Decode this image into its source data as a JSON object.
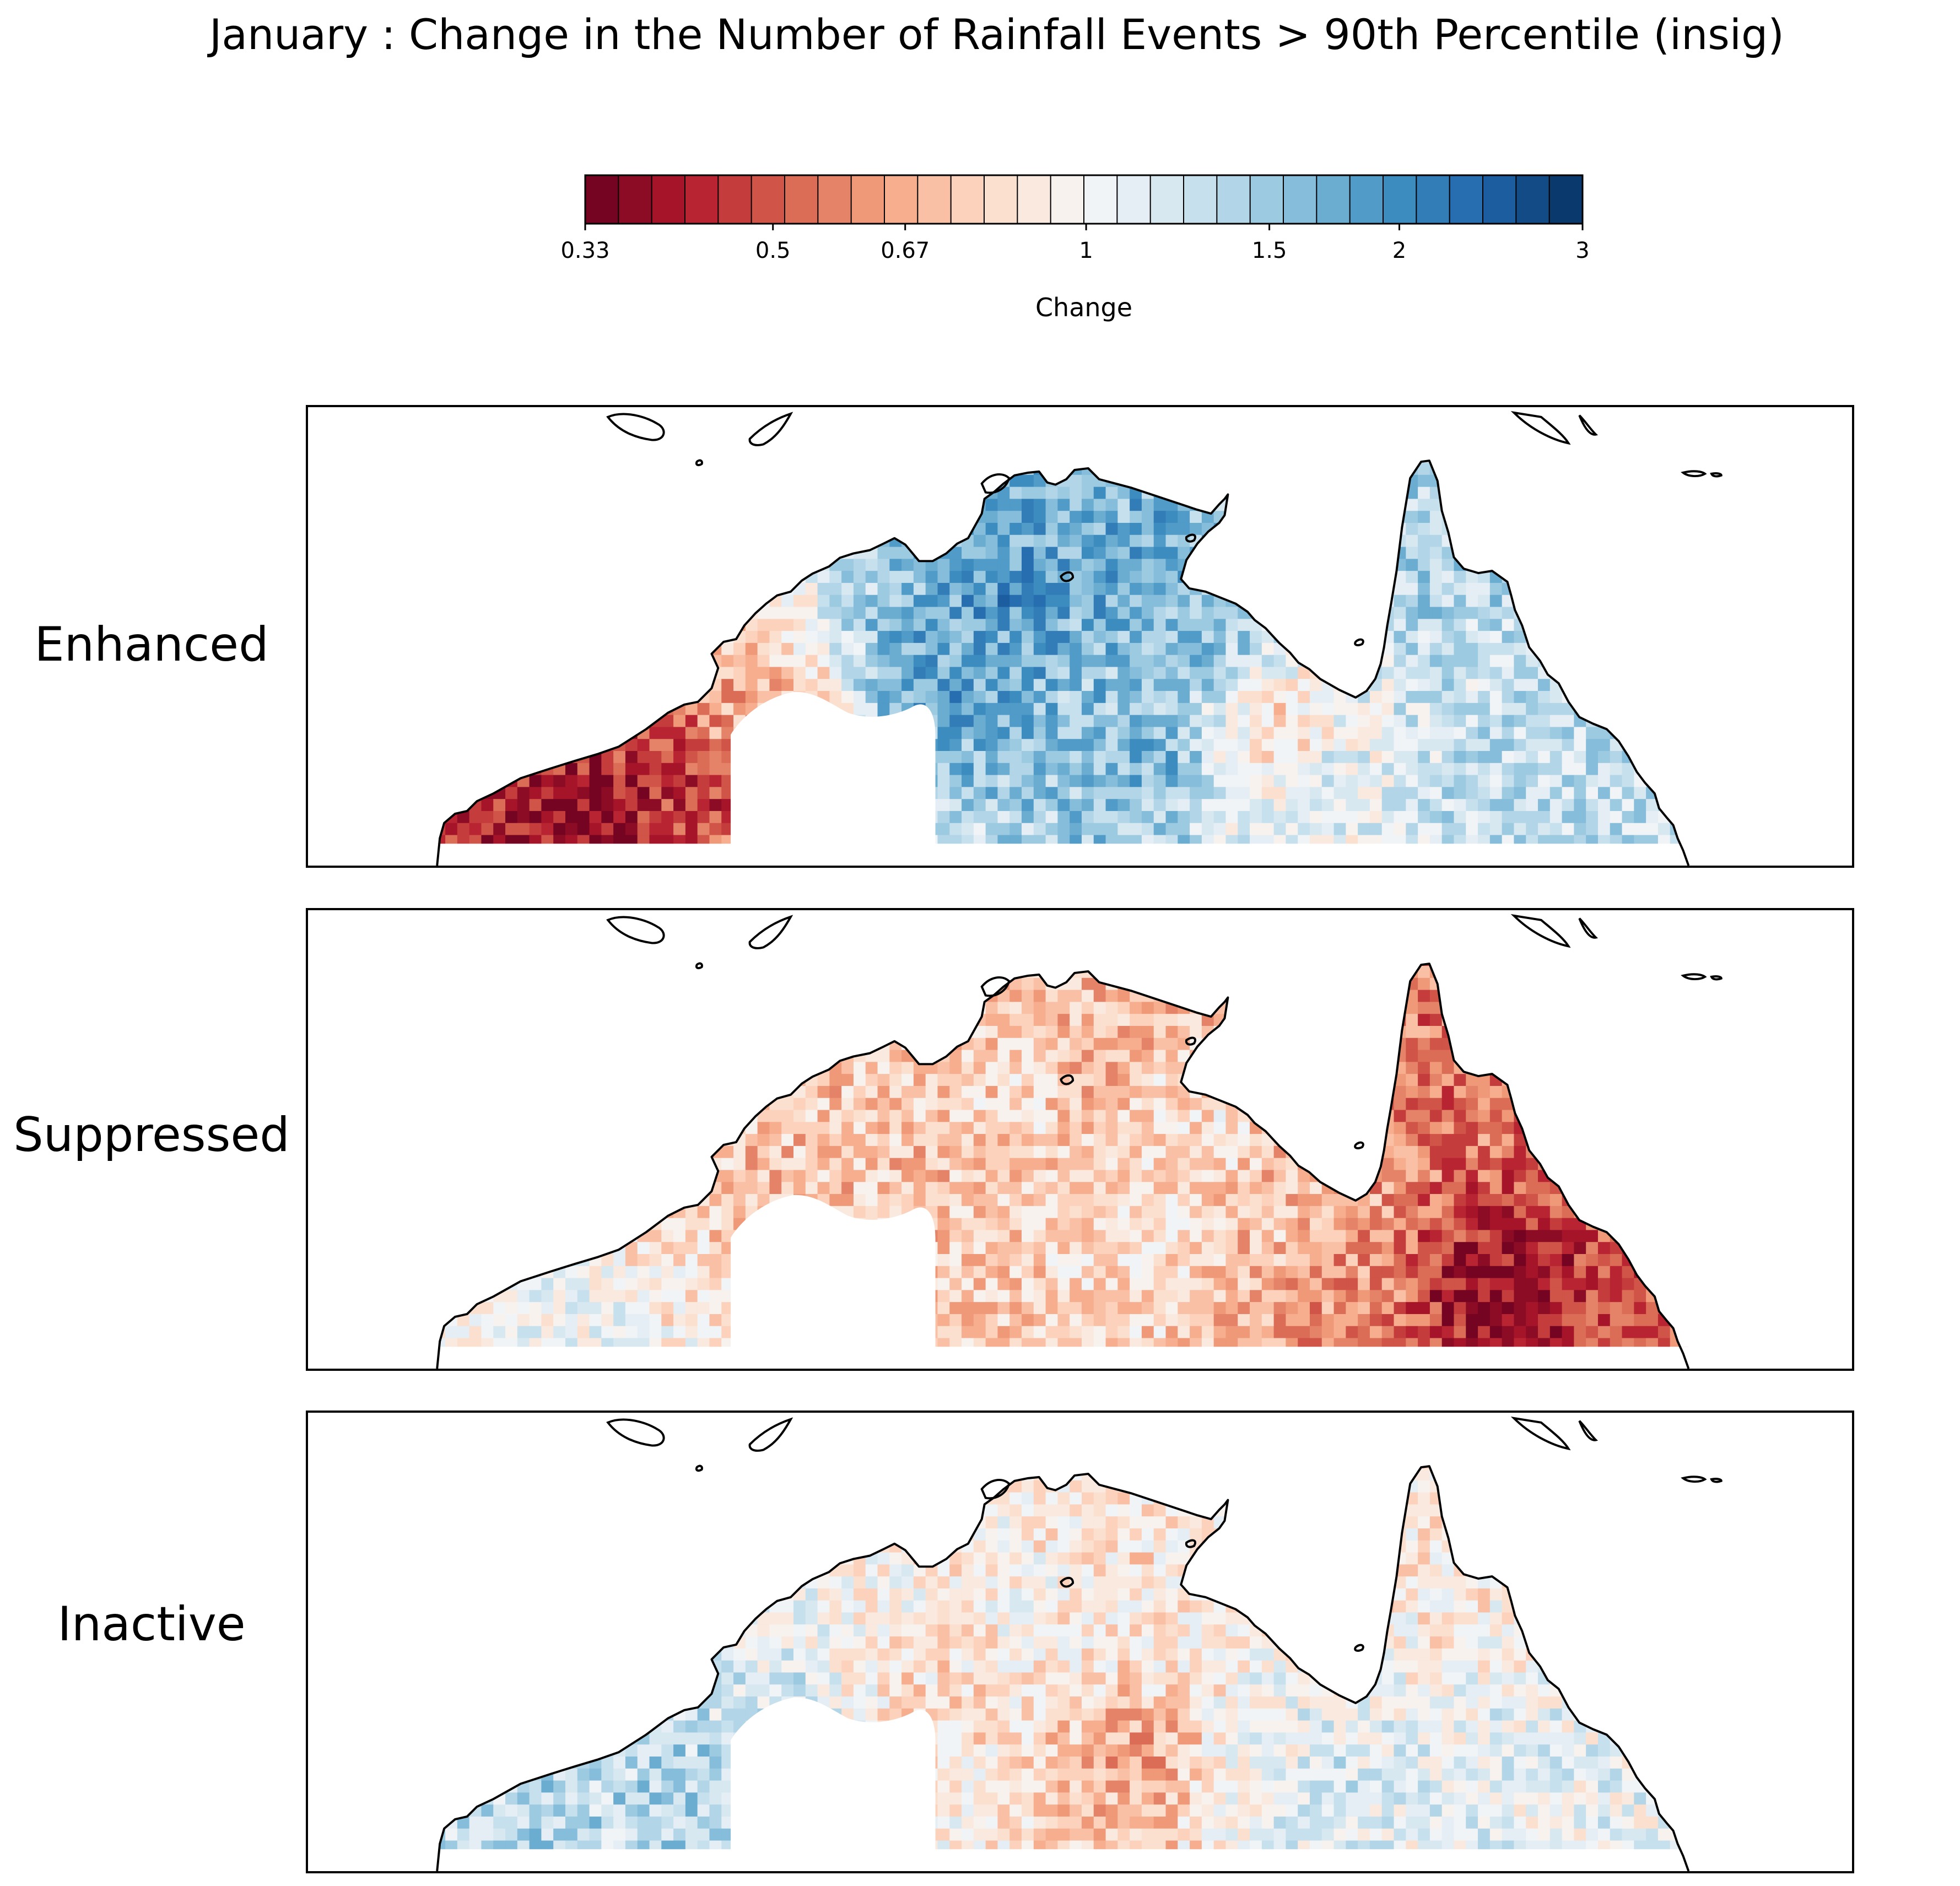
{
  "chart_data": {
    "type": "heatmap",
    "title": "January : Change in the Number of Rainfall Events > 90th Percentile (insig)",
    "colorbar": {
      "label": "Change",
      "ticks": [
        "0.33",
        "0.5",
        "0.67",
        "1",
        "1.5",
        "2",
        "3"
      ],
      "tick_values": [
        0.33,
        0.5,
        0.67,
        1,
        1.5,
        2,
        3
      ],
      "scale": "log",
      "range": [
        0.33,
        3
      ],
      "n_bins": 30,
      "colormap": [
        "#67001f",
        "#b2182b",
        "#d6604d",
        "#f4a582",
        "#fddbc7",
        "#f7f7f7",
        "#d1e5f0",
        "#92c5de",
        "#4393c3",
        "#2166ac",
        "#053061"
      ]
    },
    "panels": [
      {
        "name": "Enhanced",
        "summary": "mostly increase (blue) over northern Australia; decrease (red) in far west",
        "regions": [
          {
            "lon": 128.5,
            "lat": -16.5,
            "value": 1.8
          },
          {
            "lon": 131.0,
            "lat": -13.5,
            "value": 1.9
          },
          {
            "lon": 133.5,
            "lat": -12.5,
            "value": 1.7
          },
          {
            "lon": 136.0,
            "lat": -14.5,
            "value": 1.6
          },
          {
            "lon": 134.5,
            "lat": -18.5,
            "value": 1.6
          },
          {
            "lon": 143.0,
            "lat": -13.0,
            "value": 1.4
          },
          {
            "lon": 145.0,
            "lat": -19.5,
            "value": 1.3
          },
          {
            "lon": 140.0,
            "lat": -19.0,
            "value": 1.1
          },
          {
            "lon": 139.0,
            "lat": -18.0,
            "value": 0.8
          },
          {
            "lon": 121.0,
            "lat": -19.5,
            "value": 0.45
          },
          {
            "lon": 118.0,
            "lat": -21.0,
            "value": 0.38
          },
          {
            "lon": 123.5,
            "lat": -18.0,
            "value": 0.7
          }
        ]
      },
      {
        "name": "Suppressed",
        "summary": "mostly decrease (red), strongest in Queensland",
        "regions": [
          {
            "lon": 128.5,
            "lat": -16.5,
            "value": 0.75
          },
          {
            "lon": 131.0,
            "lat": -13.5,
            "value": 0.8
          },
          {
            "lon": 133.5,
            "lat": -12.5,
            "value": 0.7
          },
          {
            "lon": 136.0,
            "lat": -14.5,
            "value": 0.85
          },
          {
            "lon": 134.5,
            "lat": -18.5,
            "value": 0.85
          },
          {
            "lon": 143.0,
            "lat": -13.0,
            "value": 0.55
          },
          {
            "lon": 145.0,
            "lat": -19.5,
            "value": 0.4
          },
          {
            "lon": 140.0,
            "lat": -19.0,
            "value": 0.6
          },
          {
            "lon": 139.0,
            "lat": -18.0,
            "value": 0.75
          },
          {
            "lon": 121.0,
            "lat": -19.5,
            "value": 0.9
          },
          {
            "lon": 118.0,
            "lat": -21.0,
            "value": 1.1
          },
          {
            "lon": 123.5,
            "lat": -18.0,
            "value": 0.7
          }
        ]
      },
      {
        "name": "Inactive",
        "summary": "mixed; decrease in Northern Territory, increase in west and southern Queensland",
        "regions": [
          {
            "lon": 128.5,
            "lat": -16.5,
            "value": 0.85
          },
          {
            "lon": 131.0,
            "lat": -13.5,
            "value": 0.95
          },
          {
            "lon": 133.5,
            "lat": -12.5,
            "value": 0.85
          },
          {
            "lon": 136.0,
            "lat": -14.5,
            "value": 0.9
          },
          {
            "lon": 134.5,
            "lat": -18.5,
            "value": 0.65
          },
          {
            "lon": 143.0,
            "lat": -13.0,
            "value": 0.9
          },
          {
            "lon": 145.0,
            "lat": -19.5,
            "value": 1.1
          },
          {
            "lon": 140.0,
            "lat": -19.0,
            "value": 1.2
          },
          {
            "lon": 139.0,
            "lat": -18.0,
            "value": 1.05
          },
          {
            "lon": 121.0,
            "lat": -19.5,
            "value": 1.4
          },
          {
            "lon": 118.0,
            "lat": -21.0,
            "value": 1.35
          },
          {
            "lon": 123.5,
            "lat": -18.0,
            "value": 1.2
          }
        ]
      }
    ],
    "map_extent": {
      "lon": [
        110,
        156
      ],
      "lat": [
        -22,
        -8.5
      ]
    },
    "coast_color": "#000000"
  }
}
